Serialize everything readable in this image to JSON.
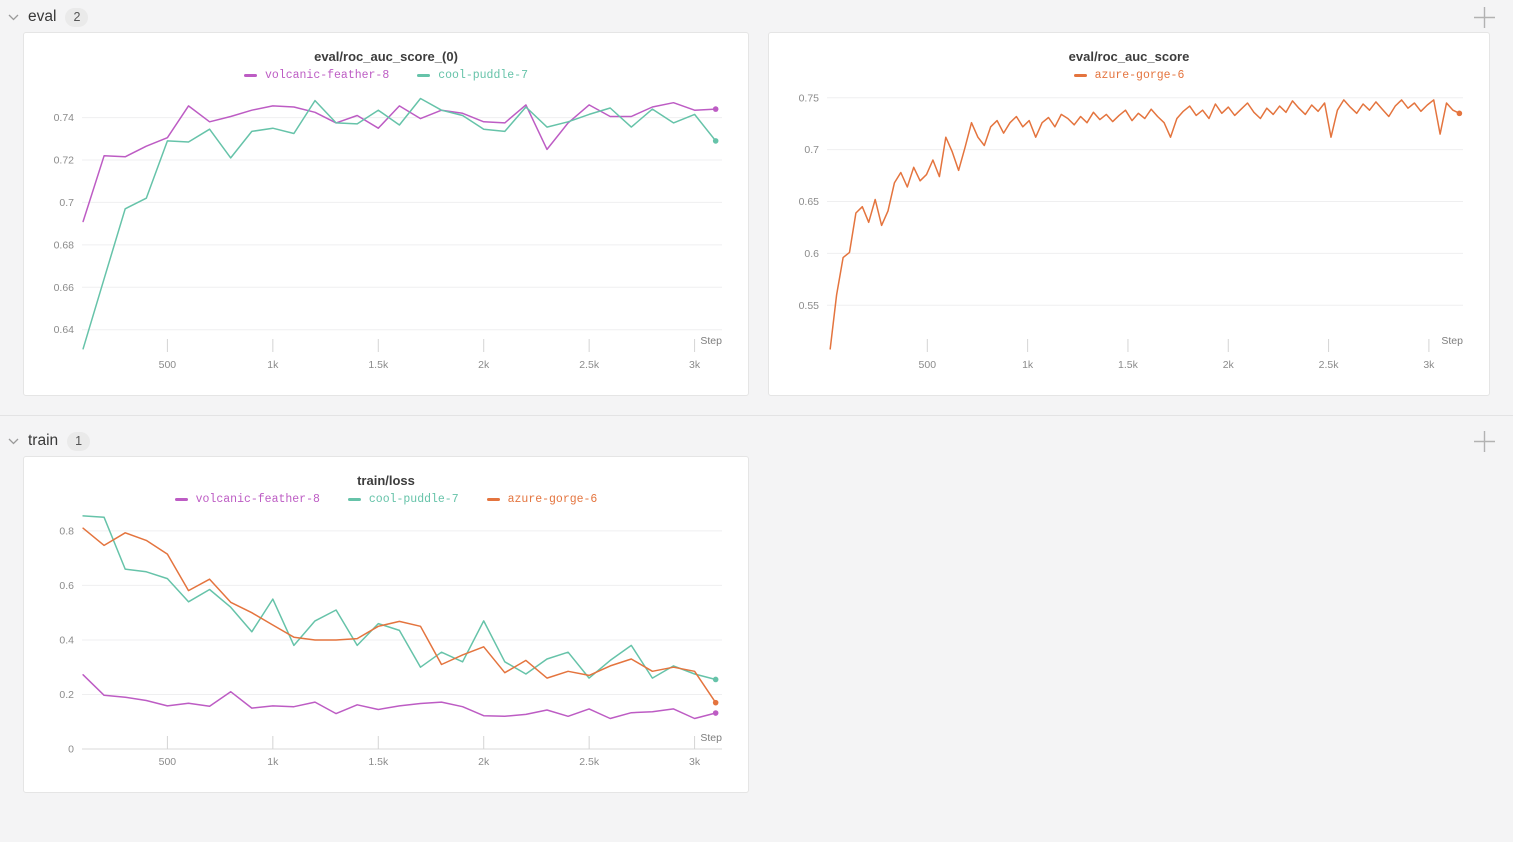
{
  "colors": {
    "background": "#f4f4f5",
    "panel_border": "#e5e5e5",
    "grid": "#efeff0",
    "axis_zero_line": "#d9d9d9",
    "tick_text": "#8b8b8b",
    "run_volcanic_feather_8": "#bd5cc4",
    "run_cool_puddle_7": "#66c3a9",
    "run_azure_gorge_6": "#e4743e"
  },
  "sections": [
    {
      "label": "eval",
      "count": "2"
    },
    {
      "label": "train",
      "count": "1"
    }
  ],
  "chart_data": [
    {
      "type": "line",
      "title": "eval/roc_auc_score_(0)",
      "xlabel": "Step",
      "legend_position": "top",
      "grid": "horizontal",
      "xlim": [
        95,
        3130
      ],
      "ylim": [
        0.6295,
        0.753
      ],
      "xticks": [
        {
          "v": 500,
          "label": "500"
        },
        {
          "v": 1000,
          "label": "1k"
        },
        {
          "v": 1500,
          "label": "1.5k"
        },
        {
          "v": 2000,
          "label": "2k"
        },
        {
          "v": 2500,
          "label": "2.5k"
        },
        {
          "v": 3000,
          "label": "3k"
        }
      ],
      "yticks": [
        {
          "v": 0.64,
          "label": "0.64"
        },
        {
          "v": 0.66,
          "label": "0.66"
        },
        {
          "v": 0.68,
          "label": "0.68"
        },
        {
          "v": 0.7,
          "label": "0.7"
        },
        {
          "v": 0.72,
          "label": "0.72"
        },
        {
          "v": 0.74,
          "label": "0.74"
        }
      ],
      "x": [
        100,
        200,
        300,
        400,
        500,
        600,
        700,
        800,
        900,
        1000,
        1100,
        1200,
        1300,
        1400,
        1500,
        1600,
        1700,
        1800,
        1900,
        2000,
        2100,
        2200,
        2300,
        2400,
        2500,
        2600,
        2700,
        2800,
        2900,
        3000,
        3100
      ],
      "series": [
        {
          "name": "volcanic-feather-8",
          "color": "#bd5cc4",
          "values": [
            0.691,
            0.722,
            0.7215,
            0.7265,
            0.7305,
            0.7455,
            0.738,
            0.7405,
            0.7435,
            0.7455,
            0.745,
            0.7425,
            0.7375,
            0.741,
            0.735,
            0.7455,
            0.7395,
            0.7435,
            0.742,
            0.738,
            0.7375,
            0.746,
            0.725,
            0.7375,
            0.746,
            0.7405,
            0.7405,
            0.745,
            0.747,
            0.7435,
            0.744
          ]
        },
        {
          "name": "cool-puddle-7",
          "color": "#66c3a9",
          "values": [
            0.631,
            0.664,
            0.697,
            0.702,
            0.729,
            0.7285,
            0.7345,
            0.721,
            0.7335,
            0.735,
            0.7325,
            0.748,
            0.7375,
            0.737,
            0.7435,
            0.7365,
            0.749,
            0.7435,
            0.741,
            0.7345,
            0.7335,
            0.745,
            0.7355,
            0.738,
            0.7415,
            0.7445,
            0.7355,
            0.744,
            0.7375,
            0.7415,
            0.729
          ]
        }
      ]
    },
    {
      "type": "line",
      "title": "eval/roc_auc_score",
      "xlabel": "Step",
      "legend_position": "top",
      "grid": "horizontal",
      "xlim": [
        0,
        3170
      ],
      "ylim": [
        0.505,
        0.7575
      ],
      "xticks": [
        {
          "v": 500,
          "label": "500"
        },
        {
          "v": 1000,
          "label": "1k"
        },
        {
          "v": 1500,
          "label": "1.5k"
        },
        {
          "v": 2000,
          "label": "2k"
        },
        {
          "v": 2500,
          "label": "2.5k"
        },
        {
          "v": 3000,
          "label": "3k"
        }
      ],
      "yticks": [
        {
          "v": 0.55,
          "label": "0.55"
        },
        {
          "v": 0.6,
          "label": "0.6"
        },
        {
          "v": 0.65,
          "label": "0.65"
        },
        {
          "v": 0.7,
          "label": "0.7"
        },
        {
          "v": 0.75,
          "label": "0.75"
        }
      ],
      "x": [
        16,
        48,
        80,
        112,
        144,
        176,
        208,
        240,
        272,
        304,
        336,
        368,
        400,
        432,
        464,
        496,
        528,
        560,
        592,
        624,
        656,
        688,
        720,
        752,
        784,
        816,
        848,
        880,
        912,
        944,
        976,
        1008,
        1040,
        1072,
        1104,
        1136,
        1168,
        1200,
        1232,
        1264,
        1296,
        1328,
        1360,
        1392,
        1424,
        1456,
        1488,
        1520,
        1552,
        1584,
        1616,
        1648,
        1680,
        1712,
        1744,
        1776,
        1808,
        1840,
        1872,
        1904,
        1936,
        1968,
        2000,
        2032,
        2064,
        2096,
        2128,
        2160,
        2192,
        2224,
        2256,
        2288,
        2320,
        2352,
        2384,
        2416,
        2448,
        2480,
        2512,
        2544,
        2576,
        2608,
        2640,
        2672,
        2704,
        2736,
        2768,
        2800,
        2832,
        2864,
        2896,
        2928,
        2960,
        2992,
        3024,
        3056,
        3088,
        3120,
        3152
      ],
      "series": [
        {
          "name": "azure-gorge-6",
          "color": "#e4743e",
          "values": [
            0.508,
            0.56,
            0.596,
            0.601,
            0.639,
            0.645,
            0.63,
            0.652,
            0.627,
            0.641,
            0.668,
            0.678,
            0.664,
            0.683,
            0.67,
            0.676,
            0.69,
            0.674,
            0.712,
            0.698,
            0.68,
            0.702,
            0.726,
            0.712,
            0.704,
            0.722,
            0.728,
            0.716,
            0.726,
            0.732,
            0.722,
            0.728,
            0.712,
            0.726,
            0.731,
            0.722,
            0.734,
            0.73,
            0.724,
            0.732,
            0.726,
            0.736,
            0.729,
            0.734,
            0.727,
            0.733,
            0.738,
            0.728,
            0.735,
            0.73,
            0.739,
            0.732,
            0.726,
            0.712,
            0.73,
            0.737,
            0.742,
            0.733,
            0.738,
            0.73,
            0.744,
            0.735,
            0.741,
            0.733,
            0.739,
            0.745,
            0.736,
            0.73,
            0.74,
            0.734,
            0.742,
            0.736,
            0.747,
            0.74,
            0.734,
            0.743,
            0.737,
            0.745,
            0.712,
            0.738,
            0.748,
            0.741,
            0.735,
            0.744,
            0.738,
            0.746,
            0.739,
            0.732,
            0.742,
            0.748,
            0.74,
            0.745,
            0.737,
            0.743,
            0.748,
            0.715,
            0.745,
            0.738,
            0.735
          ]
        }
      ]
    },
    {
      "type": "line",
      "title": "train/loss",
      "xlabel": "Step",
      "legend_position": "top",
      "grid": "horizontal",
      "xlim": [
        95,
        3130
      ],
      "ylim": [
        0,
        0.862
      ],
      "xticks": [
        {
          "v": 500,
          "label": "500"
        },
        {
          "v": 1000,
          "label": "1k"
        },
        {
          "v": 1500,
          "label": "1.5k"
        },
        {
          "v": 2000,
          "label": "2k"
        },
        {
          "v": 2500,
          "label": "2.5k"
        },
        {
          "v": 3000,
          "label": "3k"
        }
      ],
      "yticks": [
        {
          "v": 0,
          "label": "0"
        },
        {
          "v": 0.2,
          "label": "0.2"
        },
        {
          "v": 0.4,
          "label": "0.4"
        },
        {
          "v": 0.6,
          "label": "0.6"
        },
        {
          "v": 0.8,
          "label": "0.8"
        }
      ],
      "x": [
        100,
        200,
        300,
        400,
        500,
        600,
        700,
        800,
        900,
        1000,
        1100,
        1200,
        1300,
        1400,
        1500,
        1600,
        1700,
        1800,
        1900,
        2000,
        2100,
        2200,
        2300,
        2400,
        2500,
        2600,
        2700,
        2800,
        2900,
        3000,
        3100
      ],
      "series": [
        {
          "name": "volcanic-feather-8",
          "color": "#bd5cc4",
          "values": [
            0.272,
            0.197,
            0.19,
            0.178,
            0.158,
            0.168,
            0.157,
            0.21,
            0.15,
            0.158,
            0.155,
            0.172,
            0.13,
            0.162,
            0.145,
            0.158,
            0.167,
            0.172,
            0.155,
            0.122,
            0.12,
            0.127,
            0.143,
            0.12,
            0.147,
            0.112,
            0.133,
            0.137,
            0.147,
            0.112,
            0.132
          ]
        },
        {
          "name": "cool-puddle-7",
          "color": "#66c3a9",
          "values": [
            0.855,
            0.85,
            0.66,
            0.65,
            0.625,
            0.54,
            0.585,
            0.52,
            0.43,
            0.55,
            0.38,
            0.47,
            0.51,
            0.38,
            0.46,
            0.435,
            0.3,
            0.355,
            0.32,
            0.47,
            0.32,
            0.275,
            0.33,
            0.355,
            0.26,
            0.325,
            0.38,
            0.26,
            0.305,
            0.275,
            0.255
          ]
        },
        {
          "name": "azure-gorge-6",
          "color": "#e4743e",
          "values": [
            0.81,
            0.747,
            0.793,
            0.765,
            0.715,
            0.581,
            0.623,
            0.538,
            0.5,
            0.455,
            0.41,
            0.4,
            0.4,
            0.405,
            0.45,
            0.468,
            0.45,
            0.31,
            0.345,
            0.375,
            0.28,
            0.325,
            0.26,
            0.285,
            0.27,
            0.305,
            0.33,
            0.285,
            0.3,
            0.285,
            0.17
          ]
        }
      ]
    }
  ]
}
